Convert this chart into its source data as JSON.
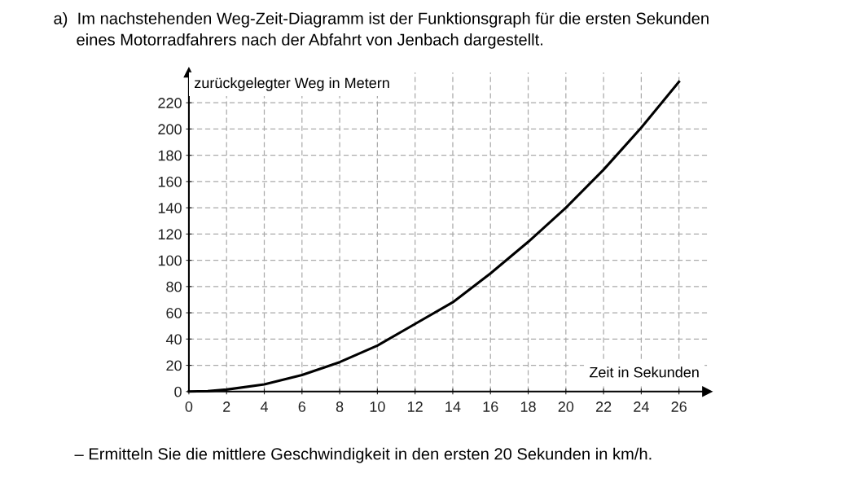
{
  "chart_data": {
    "type": "line",
    "title": "a)  Im nachstehenden Weg-Zeit-Diagramm ist der Funktionsgraph für die ersten Sekunden\n     eines Motorradfahrers nach der Abfahrt von Jenbach dargestellt.",
    "xlabel": "Zeit in Sekunden",
    "ylabel": "zurückgelegter Weg in Metern",
    "x": [
      0,
      1,
      2,
      4,
      6,
      8,
      10,
      12,
      14,
      16,
      18,
      20,
      22,
      24,
      26
    ],
    "series": [
      {
        "color": "#000000",
        "values": [
          0,
          0.3,
          1.5,
          5.5,
          12.6,
          22.4,
          35,
          51.5,
          68,
          90,
          114,
          140,
          169,
          201,
          236
        ]
      }
    ],
    "xlim": [
      0,
      27.5
    ],
    "ylim": [
      0,
      243
    ],
    "xticks": [
      0,
      2,
      4,
      6,
      8,
      10,
      12,
      14,
      16,
      18,
      20,
      22,
      24,
      26
    ],
    "yticks": [
      0,
      20,
      40,
      60,
      80,
      100,
      120,
      140,
      160,
      180,
      200,
      220
    ],
    "grid": true,
    "marker": "none",
    "line_style": "solid",
    "annotations": [
      "– Ermitteln Sie die mittlere Geschwindigkeit in den ersten 20 Sekunden in km/h."
    ]
  }
}
